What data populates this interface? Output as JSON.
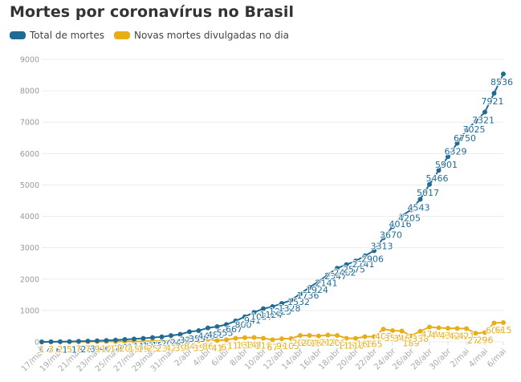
{
  "title": "Mortes por coronavírus no Brasil",
  "legend": [
    {
      "label": "Total de mortes",
      "color": "#1f6b96"
    },
    {
      "label": "Novas mortes divulgadas no dia",
      "color": "#e8ae17"
    }
  ],
  "chart_data": {
    "type": "line",
    "title": "Mortes por coronavírus no Brasil",
    "xlabel": "",
    "ylabel": "",
    "ylim": [
      0,
      9000
    ],
    "yticks": [
      0,
      1000,
      2000,
      3000,
      4000,
      5000,
      6000,
      7000,
      8000,
      9000
    ],
    "grid": true,
    "legend_position": "top-left",
    "x": [
      "17/mar",
      "18/mar",
      "19/mar",
      "20/mar",
      "21/mar",
      "22/mar",
      "23/mar",
      "24/mar",
      "25/mar",
      "26/mar",
      "27/mar",
      "28/mar",
      "29/mar",
      "30/mar",
      "31/mar",
      "1/abr",
      "2/abr",
      "3/abr",
      "4/abr",
      "5/abr",
      "6/abr",
      "7/abr",
      "8/abr",
      "9/abr",
      "10/abr",
      "11/abr",
      "12/abr",
      "13/abr",
      "14/abr",
      "15/abr",
      "16/abr",
      "17/abr",
      "18/abr",
      "19/abr",
      "20/abr",
      "21/abr",
      "22/abr",
      "23/abr",
      "24/abr",
      "25/abr",
      "26/abr",
      "27/abr",
      "28/abr",
      "29/abr",
      "30/abr",
      "1/mai",
      "2/mai",
      "3/mai",
      "4/mai",
      "5/mai",
      "6/mai"
    ],
    "xtick_labels": [
      "17/mar",
      "19/mar",
      "21/mar",
      "23/mar",
      "25/mar",
      "27/mar",
      "29/mar",
      "31/mar",
      "2/abr",
      "4/abr",
      "6/abr",
      "8/abr",
      "10/abr",
      "12/abr",
      "14/abr",
      "16/abr",
      "18/abr",
      "20/abr",
      "22/abr",
      "24/abr",
      "26/abr",
      "28/abr",
      "30/abr",
      "2/mai",
      "4/mai",
      "6/mai"
    ],
    "series": [
      {
        "name": "Total de mortes",
        "color": "#1f6b96",
        "values": [
          1,
          4,
          6,
          11,
          18,
          25,
          34,
          46,
          57,
          77,
          92,
          111,
          136,
          159,
          201,
          240,
          324,
          359,
          445,
          486,
          553,
          667,
          800,
          941,
          1057,
          1124,
          1223,
          1328,
          1532,
          1736,
          1924,
          2141,
          2347,
          2462,
          2575,
          2741,
          2906,
          3313,
          3670,
          4016,
          4205,
          4543,
          5017,
          5466,
          5901,
          6329,
          6750,
          7025,
          7321,
          7921,
          8536
        ]
      },
      {
        "name": "Novas mortes divulgadas no dia",
        "color": "#e8ae17",
        "values": [
          1,
          3,
          2,
          5,
          7,
          7,
          9,
          12,
          11,
          20,
          15,
          19,
          25,
          23,
          42,
          39,
          84,
          35,
          86,
          41,
          67,
          114,
          133,
          141,
          116,
          67,
          99,
          105,
          204,
          204,
          188,
          217,
          206,
          115,
          113,
          166,
          165,
          407,
          357,
          346,
          189,
          338,
          474,
          449,
          435,
          428,
          421,
          275,
          296,
          600,
          615
        ]
      }
    ]
  }
}
